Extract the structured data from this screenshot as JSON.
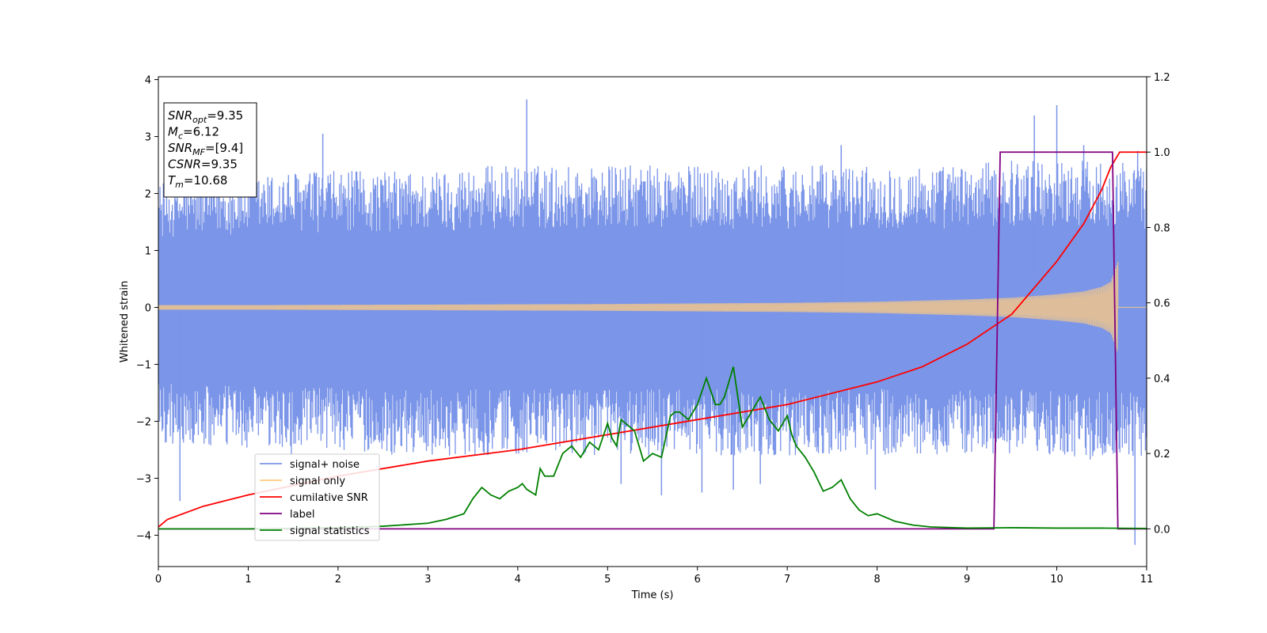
{
  "chart_data": {
    "type": "line",
    "xlabel": "Time (s)",
    "ylabel": "Whitened strain",
    "xlim": [
      0,
      11
    ],
    "ylim": [
      -4.55,
      4.05
    ],
    "y2lim": [
      -0.1,
      1.2
    ],
    "x_ticks": [
      0,
      1,
      2,
      3,
      4,
      5,
      6,
      7,
      8,
      9,
      10,
      11
    ],
    "x_tick_labels": [
      "0",
      "1",
      "2",
      "3",
      "4",
      "5",
      "6",
      "7",
      "8",
      "9",
      "10",
      "11"
    ],
    "y_ticks": [
      4,
      3,
      2,
      1,
      0,
      -1,
      -2,
      -3,
      -4
    ],
    "y_tick_labels": [
      "4",
      "3",
      "2",
      "1",
      "0",
      "−1",
      "−2",
      "−3",
      "−4"
    ],
    "y2_ticks": [
      1.2,
      1.0,
      0.8,
      0.6,
      0.4,
      0.2,
      0.0
    ],
    "y2_tick_labels": [
      "1.2",
      "1.0",
      "0.8",
      "0.6",
      "0.4",
      "0.2",
      "0.0"
    ],
    "grid": false,
    "legend_placement": "lower-left",
    "annotation": [
      {
        "base": "SNR",
        "sub": "opt",
        "value": "=9.35"
      },
      {
        "base": "M",
        "sub": "c",
        "value": "=6.12"
      },
      {
        "base": "SNR",
        "sub": "MF",
        "value": "=[9.4]"
      },
      {
        "base": "CSNR",
        "sub": "",
        "value": "=9.35"
      },
      {
        "base": "T",
        "sub": "m",
        "value": "=10.68"
      }
    ],
    "series": [
      {
        "name": "signal+ noise",
        "axis": "left",
        "color": "#7b95e8",
        "kind": "noise_band",
        "x": [
          0,
          0.5,
          1,
          1.5,
          2,
          2.5,
          3,
          3.5,
          4,
          4.5,
          5,
          5.5,
          6,
          6.5,
          7,
          7.5,
          8,
          8.5,
          9,
          9.5,
          10,
          10.5,
          10.68,
          11
        ],
        "upper": [
          2.2,
          2.3,
          2.3,
          2.4,
          2.4,
          2.4,
          2.4,
          2.5,
          2.5,
          2.5,
          2.5,
          2.5,
          2.5,
          2.5,
          2.5,
          2.5,
          2.5,
          2.5,
          2.5,
          2.6,
          2.6,
          2.6,
          2.6,
          2.5
        ],
        "lower": [
          -2.4,
          -2.5,
          -2.5,
          -2.6,
          -2.5,
          -2.6,
          -2.6,
          -2.6,
          -2.6,
          -2.6,
          -2.6,
          -2.6,
          -2.6,
          -2.6,
          -2.6,
          -2.6,
          -2.6,
          -2.6,
          -2.6,
          -2.6,
          -2.6,
          -2.7,
          -2.7,
          -2.6
        ],
        "spikes": [
          [
            0.24,
            -3.4
          ],
          [
            1.83,
            3.05
          ],
          [
            4.1,
            3.65
          ],
          [
            5.15,
            -3.1
          ],
          [
            5.6,
            -3.3
          ],
          [
            6.05,
            -3.25
          ],
          [
            6.4,
            -3.2
          ],
          [
            6.7,
            -3.1
          ],
          [
            7.6,
            2.85
          ],
          [
            7.98,
            -3.2
          ],
          [
            9.75,
            3.37
          ],
          [
            10.0,
            3.55
          ],
          [
            10.3,
            2.85
          ],
          [
            10.87,
            -4.17
          ],
          [
            10.9,
            2.75
          ]
        ]
      },
      {
        "name": "signal only",
        "axis": "left",
        "color": "#ffcc80",
        "kind": "chirp",
        "x": [
          0,
          1,
          2,
          3,
          4,
          5,
          6,
          7,
          8,
          8.5,
          9,
          9.5,
          10,
          10.3,
          10.5,
          10.6,
          10.68,
          10.7,
          11
        ],
        "amplitude": [
          0.04,
          0.04,
          0.045,
          0.05,
          0.055,
          0.06,
          0.07,
          0.08,
          0.1,
          0.12,
          0.14,
          0.17,
          0.23,
          0.28,
          0.36,
          0.45,
          0.8,
          0.0,
          0.0
        ]
      },
      {
        "name": "cumilative SNR",
        "axis": "right",
        "color": "#ff0000",
        "x": [
          0,
          0.1,
          0.5,
          1,
          2,
          3,
          4,
          5,
          6,
          7,
          8,
          8.5,
          9,
          9.5,
          10,
          10.3,
          10.5,
          10.6,
          10.7,
          11
        ],
        "values": [
          0.005,
          0.025,
          0.06,
          0.09,
          0.14,
          0.18,
          0.21,
          0.25,
          0.29,
          0.33,
          0.39,
          0.43,
          0.49,
          0.57,
          0.71,
          0.81,
          0.9,
          0.96,
          1.0,
          1.0
        ]
      },
      {
        "name": "label",
        "axis": "right",
        "color": "#800080",
        "x": [
          0,
          9.3,
          9.37,
          10.62,
          10.68,
          11
        ],
        "values": [
          0.0,
          0.0,
          1.0,
          1.0,
          0.0,
          0.0
        ]
      },
      {
        "name": "signal statistics",
        "axis": "right",
        "color": "#008000",
        "x": [
          0,
          1,
          2,
          2.5,
          3,
          3.2,
          3.4,
          3.5,
          3.6,
          3.7,
          3.8,
          3.9,
          4.0,
          4.05,
          4.1,
          4.2,
          4.25,
          4.3,
          4.4,
          4.5,
          4.6,
          4.7,
          4.8,
          4.9,
          5.0,
          5.05,
          5.1,
          5.15,
          5.2,
          5.3,
          5.4,
          5.5,
          5.6,
          5.7,
          5.75,
          5.8,
          5.9,
          6.0,
          6.1,
          6.2,
          6.25,
          6.3,
          6.4,
          6.5,
          6.6,
          6.7,
          6.8,
          6.9,
          7.0,
          7.05,
          7.1,
          7.2,
          7.3,
          7.4,
          7.5,
          7.6,
          7.7,
          7.8,
          7.9,
          8.0,
          8.1,
          8.2,
          8.4,
          8.6,
          9.0,
          9.5,
          10.0,
          10.5,
          11.0
        ],
        "values": [
          0.0,
          0.0,
          0.003,
          0.007,
          0.015,
          0.025,
          0.04,
          0.08,
          0.11,
          0.09,
          0.08,
          0.1,
          0.11,
          0.12,
          0.105,
          0.09,
          0.16,
          0.14,
          0.14,
          0.2,
          0.22,
          0.19,
          0.23,
          0.21,
          0.28,
          0.24,
          0.22,
          0.29,
          0.28,
          0.26,
          0.18,
          0.2,
          0.19,
          0.3,
          0.31,
          0.31,
          0.29,
          0.33,
          0.4,
          0.33,
          0.33,
          0.35,
          0.43,
          0.27,
          0.31,
          0.35,
          0.29,
          0.26,
          0.3,
          0.25,
          0.22,
          0.19,
          0.15,
          0.1,
          0.11,
          0.13,
          0.08,
          0.05,
          0.035,
          0.04,
          0.03,
          0.02,
          0.01,
          0.005,
          0.002,
          0.003,
          0.002,
          0.002,
          0.001
        ]
      }
    ]
  }
}
